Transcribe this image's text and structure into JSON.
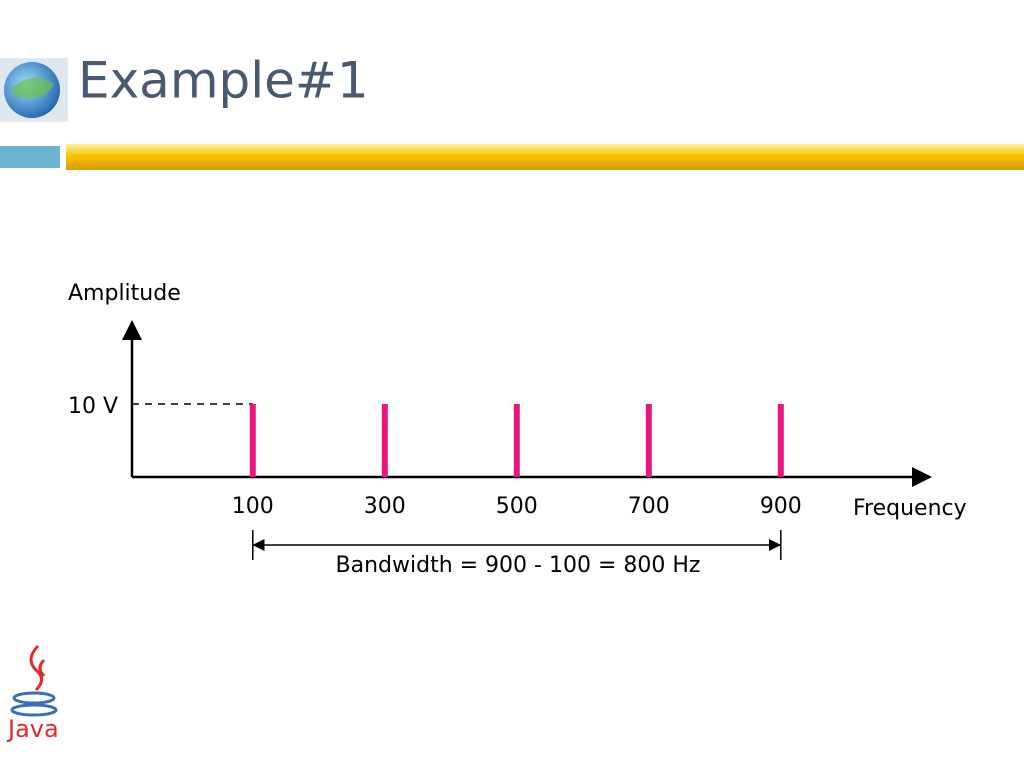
{
  "slide": {
    "title": "Example#1",
    "logo_text": "Java"
  },
  "chart_data": {
    "type": "bar",
    "x": [
      100,
      300,
      500,
      700,
      900
    ],
    "values": [
      10,
      10,
      10,
      10,
      10
    ],
    "color": "#e8177f",
    "x_label": "Frequency",
    "y_label": "Amplitude",
    "xlim": [
      -83,
      1123
    ],
    "ylim": [
      0,
      20
    ],
    "xticks": [
      100,
      300,
      500,
      700,
      900
    ],
    "yticks": [
      {
        "value": 10,
        "label": "10 V"
      }
    ],
    "annotation": "Bandwidth = 900 - 100 = 800 Hz"
  }
}
